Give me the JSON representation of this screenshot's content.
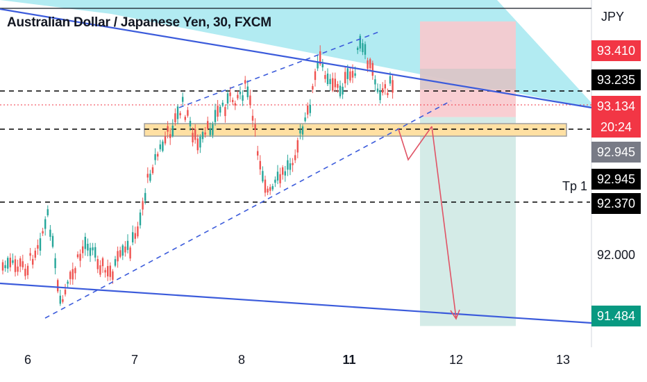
{
  "header": {
    "title": "Australian Dollar / Japanese Yen, 30, FXCM",
    "currency": "JPY"
  },
  "colors": {
    "channel_line": "#3b5bdb",
    "bull_candle": "#26a69a",
    "bear_candle": "#ef5350",
    "top_fill": "#b2ebf2",
    "zone_fill": "#ffe0a3",
    "zone_border": "#9e9e9e",
    "stop_fill": "#f8c9cd",
    "target_fill": "#cfe9e4",
    "arrow": "#e05365"
  },
  "price_labels": [
    {
      "text": "93.410",
      "bg": "#f23645",
      "fg": "#ffffff"
    },
    {
      "text": "93.235",
      "bg": "#000000",
      "fg": "#ffffff"
    },
    {
      "text": "93.134",
      "bg": "#f23645",
      "fg": "#ffffff"
    },
    {
      "text": "20:24",
      "bg": "#f23645",
      "fg": "#ffffff"
    },
    {
      "text": "92.945",
      "bg": "#787b86",
      "fg": "#ffffff"
    },
    {
      "text": "92.945",
      "bg": "#000000",
      "fg": "#ffffff"
    },
    {
      "text": "92.370",
      "bg": "#000000",
      "fg": "#ffffff"
    },
    {
      "text": "92.000",
      "bg": "",
      "fg": "#131722"
    },
    {
      "text": "91.484",
      "bg": "#089981",
      "fg": "#ffffff"
    }
  ],
  "annotations": {
    "tp1": "Tp 1"
  },
  "chart_data": {
    "type": "candlestick",
    "title": "Australian Dollar / Japanese Yen, 30, FXCM",
    "symbol": "AUDJPY",
    "timeframe": "30",
    "source": "FXCM",
    "x_ticks": [
      "6",
      "7",
      "8",
      "11",
      "12",
      "13"
    ],
    "y_axis_label": "JPY",
    "ylim": [
      91.35,
      93.55
    ],
    "current_price": 93.134,
    "countdown": "20:24",
    "horizontal_levels": [
      93.235,
      92.945,
      92.37
    ],
    "target_level": 91.484,
    "resistance_zone": [
      92.91,
      93.0
    ],
    "trade_box": {
      "entry": 92.945,
      "stop": 93.41,
      "target": 91.484
    },
    "path": [
      {
        "date": 6.0,
        "open": 91.84,
        "close": 91.96
      },
      {
        "date": 6.2,
        "open": 92.22,
        "close": 92.28
      },
      {
        "date": 6.3,
        "open": 91.62,
        "close": 91.6
      },
      {
        "date": 6.55,
        "open": 92.12,
        "close": 92.06
      },
      {
        "date": 6.75,
        "open": 91.85,
        "close": 91.82
      },
      {
        "date": 7.0,
        "open": 92.05,
        "close": 92.12
      },
      {
        "date": 7.15,
        "open": 92.6,
        "close": 92.58
      },
      {
        "date": 7.45,
        "open": 93.03,
        "close": 93.02
      },
      {
        "date": 7.6,
        "open": 92.7,
        "close": 92.75
      },
      {
        "date": 7.8,
        "open": 93.02,
        "close": 93.0
      },
      {
        "date": 8.05,
        "open": 93.22,
        "close": 93.08
      },
      {
        "date": 8.15,
        "open": 92.8,
        "close": 92.62
      },
      {
        "date": 8.25,
        "open": 92.4,
        "close": 92.38
      },
      {
        "date": 8.45,
        "open": 92.6,
        "close": 92.64
      },
      {
        "date": 8.6,
        "open": 92.92,
        "close": 92.9
      },
      {
        "date": 8.72,
        "open": 93.35,
        "close": 93.32
      },
      {
        "date": 8.9,
        "open": 93.15,
        "close": 93.12
      },
      {
        "date": 9.05,
        "open": 93.26,
        "close": 93.25
      },
      {
        "date": 9.1,
        "open": 93.45,
        "close": 93.46
      },
      {
        "date": 9.3,
        "open": 93.12,
        "close": 93.13
      },
      {
        "date": 9.4,
        "open": 93.2,
        "close": 93.15
      }
    ]
  }
}
